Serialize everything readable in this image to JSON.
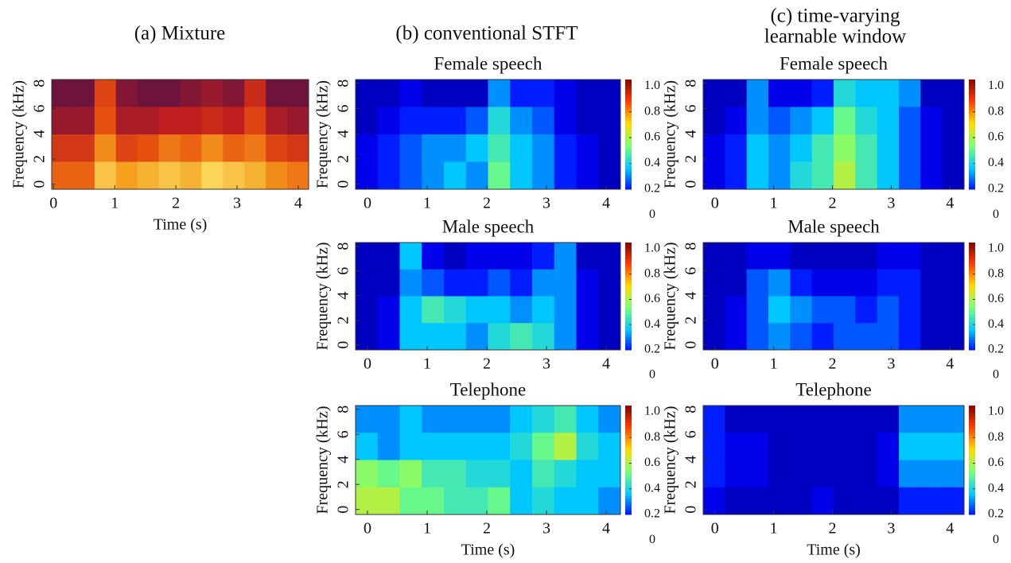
{
  "headers": [
    [
      "(a) Mixture"
    ],
    [
      "(b) conventional STFT"
    ],
    [
      "(c) time-varying",
      "learnable window"
    ]
  ],
  "chart_data": [
    {
      "type": "heatmap",
      "xlabel": "Time (s)",
      "ylabel": "Frequency (kHz)",
      "colormap": "hot",
      "xlim": [
        -0.03,
        4.17
      ],
      "xticks": [
        0,
        1,
        2,
        3,
        4
      ],
      "ylim": [
        -0.4,
        8.3
      ],
      "yticks": [
        0,
        2,
        4,
        6,
        8
      ],
      "z": [
        [
          0.2,
          0.2,
          0.55,
          0.25,
          0.2,
          0.2,
          0.25,
          0.3,
          0.25,
          0.45,
          0.2,
          0.2
        ],
        [
          0.3,
          0.3,
          0.6,
          0.35,
          0.35,
          0.4,
          0.4,
          0.45,
          0.4,
          0.55,
          0.35,
          0.3
        ],
        [
          0.5,
          0.5,
          0.75,
          0.55,
          0.6,
          0.7,
          0.65,
          0.75,
          0.65,
          0.7,
          0.55,
          0.5
        ],
        [
          0.65,
          0.65,
          0.9,
          0.8,
          0.85,
          0.9,
          0.85,
          0.95,
          0.9,
          0.85,
          0.75,
          0.7
        ]
      ]
    },
    {
      "type": "heatmap",
      "title": "Female speech",
      "ylabel": "Frequency (kHz)",
      "colormap": "jet",
      "xlim": [
        -0.2,
        4.24
      ],
      "xticks": [
        0,
        1,
        2,
        3,
        4
      ],
      "ylim": [
        -0.4,
        8.3
      ],
      "yticks": [
        0,
        2,
        4,
        6,
        8
      ],
      "clim": [
        0.2,
        1.05
      ],
      "cticks": [
        {
          "value": 1,
          "label": "1.0"
        },
        0.8,
        0.6,
        0.4,
        0.2,
        0
      ],
      "z": [
        [
          0.1,
          0.1,
          0.15,
          0.1,
          0.1,
          0.1,
          0.3,
          0.2,
          0.2,
          0.15,
          0.1,
          0.1
        ],
        [
          0.1,
          0.15,
          0.2,
          0.2,
          0.2,
          0.25,
          0.4,
          0.3,
          0.25,
          0.15,
          0.1,
          0.1
        ],
        [
          0.15,
          0.2,
          0.25,
          0.3,
          0.3,
          0.35,
          0.45,
          0.35,
          0.3,
          0.2,
          0.15,
          0.1
        ],
        [
          0.15,
          0.2,
          0.25,
          0.3,
          0.35,
          0.3,
          0.5,
          0.35,
          0.3,
          0.2,
          0.15,
          0.1
        ]
      ]
    },
    {
      "type": "heatmap",
      "title": "Female speech",
      "ylabel": "Frequency (kHz)",
      "colormap": "jet",
      "xlim": [
        -0.2,
        4.24
      ],
      "xticks": [
        0,
        1,
        2,
        3,
        4
      ],
      "ylim": [
        -0.4,
        8.3
      ],
      "yticks": [
        0,
        2,
        4,
        6,
        8
      ],
      "clim": [
        0.2,
        1.05
      ],
      "cticks": [
        {
          "value": 1,
          "label": "1.0"
        },
        0.8,
        0.6,
        0.4,
        0.2,
        0
      ],
      "z": [
        [
          0.1,
          0.1,
          0.3,
          0.15,
          0.15,
          0.2,
          0.4,
          0.35,
          0.35,
          0.3,
          0.1,
          0.1
        ],
        [
          0.1,
          0.15,
          0.3,
          0.25,
          0.3,
          0.35,
          0.5,
          0.4,
          0.35,
          0.25,
          0.15,
          0.1
        ],
        [
          0.15,
          0.2,
          0.35,
          0.3,
          0.35,
          0.45,
          0.55,
          0.45,
          0.35,
          0.25,
          0.15,
          0.1
        ],
        [
          0.15,
          0.2,
          0.35,
          0.3,
          0.4,
          0.45,
          0.6,
          0.45,
          0.35,
          0.25,
          0.15,
          0.1
        ]
      ]
    },
    {
      "type": "heatmap",
      "title": "Male speech",
      "ylabel": "Frequency (kHz)",
      "colormap": "jet",
      "xlim": [
        -0.2,
        4.24
      ],
      "xticks": [
        0,
        1,
        2,
        3,
        4
      ],
      "ylim": [
        -0.4,
        8.3
      ],
      "yticks": [
        0,
        2,
        4,
        6,
        8
      ],
      "clim": [
        0.2,
        1.05
      ],
      "cticks": [
        {
          "value": 1,
          "label": "1.0"
        },
        0.8,
        0.6,
        0.4,
        0.2,
        0
      ],
      "z": [
        [
          0.1,
          0.1,
          0.35,
          0.15,
          0.1,
          0.15,
          0.15,
          0.15,
          0.2,
          0.3,
          0.1,
          0.1
        ],
        [
          0.1,
          0.1,
          0.3,
          0.25,
          0.2,
          0.2,
          0.25,
          0.2,
          0.3,
          0.3,
          0.15,
          0.1
        ],
        [
          0.1,
          0.15,
          0.35,
          0.45,
          0.4,
          0.35,
          0.35,
          0.3,
          0.35,
          0.3,
          0.15,
          0.1
        ],
        [
          0.1,
          0.15,
          0.35,
          0.35,
          0.35,
          0.3,
          0.4,
          0.45,
          0.4,
          0.3,
          0.15,
          0.1
        ]
      ]
    },
    {
      "type": "heatmap",
      "title": "Male speech",
      "ylabel": "Frequency (kHz)",
      "colormap": "jet",
      "xlim": [
        -0.2,
        4.24
      ],
      "xticks": [
        0,
        1,
        2,
        3,
        4
      ],
      "ylim": [
        -0.4,
        8.3
      ],
      "yticks": [
        0,
        2,
        4,
        6,
        8
      ],
      "clim": [
        0.2,
        1.05
      ],
      "cticks": [
        {
          "value": 1,
          "label": "1.0"
        },
        0.8,
        0.6,
        0.4,
        0.2,
        0
      ],
      "z": [
        [
          0.1,
          0.1,
          0.15,
          0.15,
          0.1,
          0.1,
          0.1,
          0.1,
          0.15,
          0.15,
          0.1,
          0.1
        ],
        [
          0.1,
          0.1,
          0.25,
          0.3,
          0.2,
          0.15,
          0.15,
          0.15,
          0.2,
          0.2,
          0.1,
          0.1
        ],
        [
          0.1,
          0.15,
          0.25,
          0.35,
          0.3,
          0.25,
          0.25,
          0.2,
          0.25,
          0.2,
          0.1,
          0.1
        ],
        [
          0.1,
          0.15,
          0.25,
          0.3,
          0.25,
          0.2,
          0.25,
          0.25,
          0.25,
          0.2,
          0.1,
          0.1
        ]
      ]
    },
    {
      "type": "heatmap",
      "title": "Telephone",
      "xlabel": "Time (s)",
      "ylabel": "Frequency (kHz)",
      "colormap": "jet",
      "xlim": [
        -0.2,
        4.24
      ],
      "xticks": [
        0,
        1,
        2,
        3,
        4
      ],
      "ylim": [
        -0.4,
        8.3
      ],
      "yticks": [
        0,
        2,
        4,
        6,
        8
      ],
      "clim": [
        0.2,
        1.05
      ],
      "cticks": [
        {
          "value": 1,
          "label": "1.0"
        },
        0.8,
        0.6,
        0.4,
        0.2,
        0
      ],
      "z": [
        [
          0.3,
          0.3,
          0.35,
          0.3,
          0.3,
          0.3,
          0.3,
          0.35,
          0.4,
          0.45,
          0.35,
          0.3
        ],
        [
          0.35,
          0.3,
          0.35,
          0.35,
          0.35,
          0.35,
          0.35,
          0.4,
          0.5,
          0.6,
          0.4,
          0.35
        ],
        [
          0.55,
          0.5,
          0.55,
          0.45,
          0.45,
          0.4,
          0.4,
          0.35,
          0.45,
          0.4,
          0.35,
          0.35
        ],
        [
          0.6,
          0.6,
          0.5,
          0.5,
          0.45,
          0.45,
          0.5,
          0.35,
          0.4,
          0.35,
          0.35,
          0.3
        ]
      ]
    },
    {
      "type": "heatmap",
      "title": "Telephone",
      "xlabel": "Time (s)",
      "ylabel": "Frequency (kHz)",
      "colormap": "jet",
      "xlim": [
        -0.2,
        4.24
      ],
      "xticks": [
        0,
        1,
        2,
        3,
        4
      ],
      "ylim": [
        -0.4,
        8.3
      ],
      "yticks": [
        0,
        2,
        4,
        6,
        8
      ],
      "clim": [
        0.2,
        1.05
      ],
      "cticks": [
        {
          "value": 1,
          "label": "1.0"
        },
        0.8,
        0.6,
        0.4,
        0.2,
        0
      ],
      "z": [
        [
          0.2,
          0.1,
          0.1,
          0.1,
          0.1,
          0.1,
          0.1,
          0.1,
          0.1,
          0.3,
          0.3,
          0.3
        ],
        [
          0.2,
          0.15,
          0.15,
          0.1,
          0.1,
          0.1,
          0.1,
          0.1,
          0.15,
          0.35,
          0.35,
          0.35
        ],
        [
          0.2,
          0.15,
          0.15,
          0.1,
          0.1,
          0.1,
          0.1,
          0.1,
          0.15,
          0.3,
          0.3,
          0.3
        ],
        [
          0.15,
          0.1,
          0.1,
          0.1,
          0.1,
          0.15,
          0.1,
          0.1,
          0.1,
          0.2,
          0.2,
          0.2
        ]
      ]
    }
  ]
}
